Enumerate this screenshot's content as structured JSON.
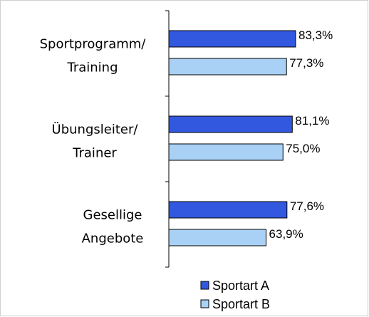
{
  "chart_data": {
    "type": "bar",
    "orientation": "horizontal",
    "categories": [
      "Sportprogramm/\nTraining",
      "Übungsleiter/\nTrainer",
      "Gesellige\nAngebote"
    ],
    "series": [
      {
        "name": "Sportart A",
        "color": "#3358e0",
        "values": [
          83.3,
          81.1,
          77.6
        ],
        "value_labels": [
          "83,3%",
          "81,1%",
          "77,6%"
        ]
      },
      {
        "name": "Sportart B",
        "color": "#a9d0f5",
        "values": [
          77.3,
          75.0,
          63.9
        ],
        "value_labels": [
          "77,3%",
          "75,0%",
          "63,9%"
        ]
      }
    ],
    "xlim": [
      0,
      100
    ],
    "legend": "bottom"
  }
}
